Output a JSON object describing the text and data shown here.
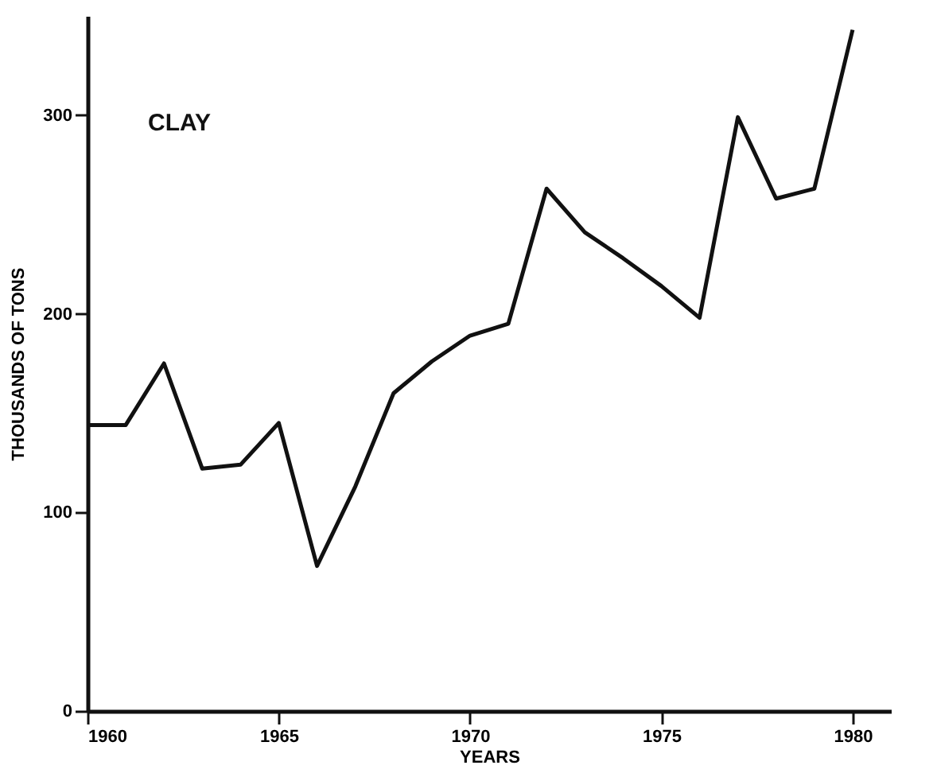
{
  "chart_data": {
    "type": "line",
    "xlabel": "YEARS",
    "ylabel": "THOUSANDS OF TONS",
    "annotations": [
      "CLAY"
    ],
    "x": [
      1960,
      1961,
      1962,
      1963,
      1964,
      1965,
      1966,
      1967,
      1968,
      1969,
      1970,
      1971,
      1972,
      1973,
      1974,
      1975,
      1976,
      1977,
      1978,
      1979,
      1980
    ],
    "series": [
      {
        "color": "#111111",
        "values": [
          144,
          144,
          175,
          122,
          124,
          145,
          73,
          113,
          160,
          176,
          189,
          195,
          263,
          241,
          228,
          214,
          198,
          299,
          258,
          263,
          343
        ]
      }
    ],
    "xlim": [
      1960,
      1981
    ],
    "xticks": [
      1960,
      1965,
      1970,
      1975,
      1980
    ],
    "ylim": [
      0,
      350
    ],
    "yticks": [
      0,
      100,
      200,
      300
    ],
    "grid": false,
    "legend": false,
    "marker": "none",
    "line_style": "solid"
  }
}
